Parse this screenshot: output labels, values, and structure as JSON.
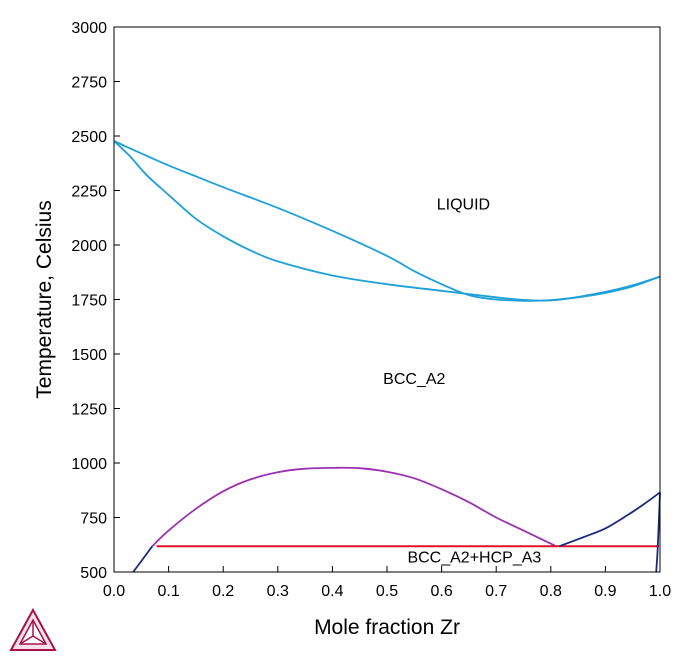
{
  "chart_data": {
    "type": "line",
    "title": "",
    "xlabel": "Mole fraction Zr",
    "ylabel": "Temperature, Celsius",
    "xlim": [
      0.0,
      1.0
    ],
    "ylim": [
      500,
      3000
    ],
    "x_ticks": [
      "0.0",
      "0.1",
      "0.2",
      "0.3",
      "0.4",
      "0.5",
      "0.6",
      "0.7",
      "0.8",
      "0.9",
      "1.0"
    ],
    "y_ticks": [
      "500",
      "750",
      "1000",
      "1250",
      "1500",
      "1750",
      "2000",
      "2250",
      "2500",
      "2750",
      "3000"
    ],
    "grid": false,
    "legend": "none",
    "colors": {
      "liquidus": "#1ea0d8",
      "solidus": "#1ea0d8",
      "miscibility_gap": "#9b30b0",
      "eutectoid": "#e0102a",
      "hcp_boundary": "#1a2a7a",
      "frame": "#000000"
    },
    "region_labels": [
      {
        "text": "LIQUID",
        "x": 0.64,
        "y": 2190
      },
      {
        "text": "BCC_A2",
        "x": 0.55,
        "y": 1390
      },
      {
        "text": "BCC_A2+HCP_A3",
        "x": 0.66,
        "y": 570
      }
    ],
    "series": [
      {
        "role": "liquidus",
        "points": [
          [
            0.0,
            2477
          ],
          [
            0.05,
            2420
          ],
          [
            0.1,
            2365
          ],
          [
            0.15,
            2315
          ],
          [
            0.2,
            2265
          ],
          [
            0.3,
            2170
          ],
          [
            0.4,
            2065
          ],
          [
            0.5,
            1950
          ],
          [
            0.55,
            1880
          ],
          [
            0.6,
            1820
          ],
          [
            0.65,
            1770
          ],
          [
            0.7,
            1750
          ],
          [
            0.75,
            1744
          ],
          [
            0.78,
            1745
          ],
          [
            0.82,
            1750
          ],
          [
            0.9,
            1785
          ],
          [
            0.95,
            1815
          ],
          [
            1.0,
            1855
          ]
        ]
      },
      {
        "role": "solidus",
        "points": [
          [
            0.0,
            2477
          ],
          [
            0.03,
            2405
          ],
          [
            0.06,
            2320
          ],
          [
            0.1,
            2230
          ],
          [
            0.15,
            2120
          ],
          [
            0.2,
            2040
          ],
          [
            0.25,
            1975
          ],
          [
            0.3,
            1925
          ],
          [
            0.4,
            1860
          ],
          [
            0.5,
            1820
          ],
          [
            0.6,
            1790
          ],
          [
            0.7,
            1760
          ],
          [
            0.75,
            1748
          ],
          [
            0.78,
            1745
          ],
          [
            0.8,
            1747
          ],
          [
            0.85,
            1760
          ],
          [
            0.9,
            1780
          ],
          [
            0.95,
            1810
          ],
          [
            1.0,
            1855
          ]
        ]
      },
      {
        "role": "miscibility_gap",
        "points": [
          [
            0.07,
            618
          ],
          [
            0.1,
            690
          ],
          [
            0.15,
            790
          ],
          [
            0.2,
            870
          ],
          [
            0.25,
            925
          ],
          [
            0.3,
            958
          ],
          [
            0.35,
            974
          ],
          [
            0.41,
            978
          ],
          [
            0.45,
            976
          ],
          [
            0.5,
            960
          ],
          [
            0.55,
            930
          ],
          [
            0.6,
            880
          ],
          [
            0.65,
            820
          ],
          [
            0.7,
            750
          ],
          [
            0.75,
            690
          ],
          [
            0.81,
            618
          ]
        ]
      },
      {
        "role": "bcc_low_boundary",
        "points": [
          [
            0.035,
            500
          ],
          [
            0.05,
            550
          ],
          [
            0.07,
            618
          ]
        ]
      },
      {
        "role": "eutectoid",
        "points": [
          [
            0.078,
            618
          ],
          [
            0.998,
            618
          ]
        ]
      },
      {
        "role": "hcp_boundary",
        "points": [
          [
            0.815,
            618
          ],
          [
            0.86,
            660
          ],
          [
            0.9,
            700
          ],
          [
            0.94,
            760
          ],
          [
            0.97,
            810
          ],
          [
            1.0,
            865
          ]
        ]
      },
      {
        "role": "hcp_solvus",
        "points": [
          [
            0.993,
            500
          ],
          [
            0.996,
            618
          ],
          [
            1.0,
            865
          ]
        ]
      }
    ]
  },
  "logo": {
    "name": "thermo-calc-logo"
  }
}
